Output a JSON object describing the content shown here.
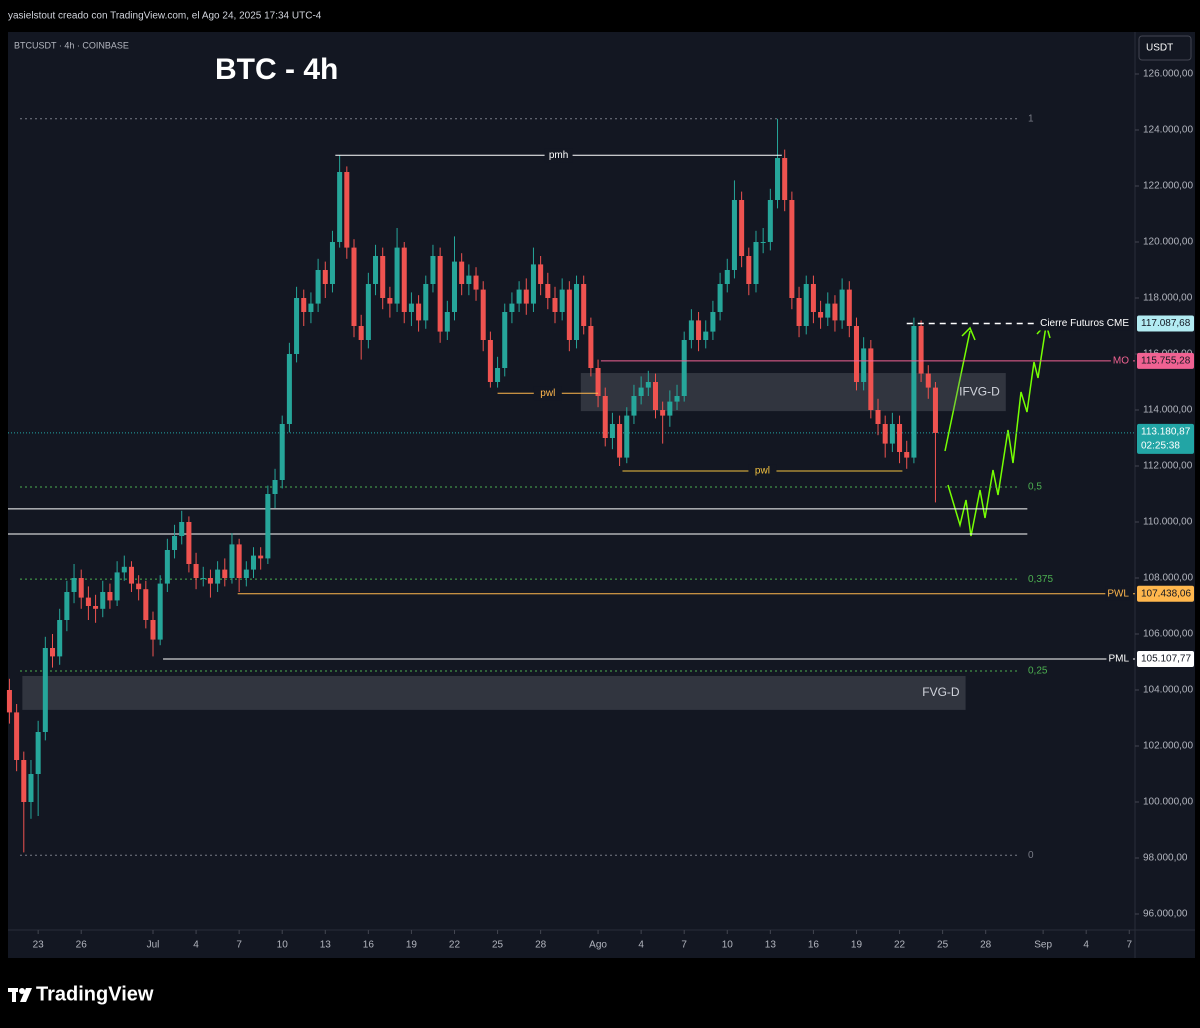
{
  "header": {
    "caption": "yasielstout creado con TradingView.com, el Ago 24, 2025 17:34 UTC-4"
  },
  "chart_data": {
    "type": "candlestick",
    "symbol": "BTCUSDT · 4h · COINBASE",
    "title": "BTC - 4h",
    "currency": "USDT",
    "up_color": "#26a69a",
    "down_color": "#ef5350",
    "x": [
      -2,
      -1.5,
      -1,
      -0.5,
      0,
      0.5,
      1,
      1.5,
      2,
      2.5,
      3,
      3.5,
      4,
      4.5,
      5,
      5.5,
      6,
      6.5,
      7,
      7.5,
      8,
      8.5,
      9,
      9.5,
      10,
      10.5,
      11,
      11.5,
      12,
      12.5,
      13,
      13.5,
      14,
      14.5,
      15,
      15.5,
      16,
      16.5,
      17,
      17.5,
      18,
      18.5,
      19,
      19.5,
      20,
      20.5,
      21,
      21.5,
      22,
      22.5,
      23,
      23.5,
      24,
      24.5,
      25,
      25.5,
      26,
      26.5,
      27,
      27.5,
      28,
      28.5,
      29,
      29.5,
      30,
      30.5,
      31,
      31.5,
      32,
      32.5,
      33,
      33.5,
      34,
      34.5,
      35,
      35.5,
      36,
      36.5,
      37,
      37.5,
      38,
      38.5,
      39,
      39.5,
      40,
      40.5,
      41,
      41.5,
      42,
      42.5,
      43,
      43.5,
      44,
      44.5,
      45,
      45.5,
      46,
      46.5,
      47,
      47.5,
      48,
      48.5,
      49,
      49.5,
      50,
      50.5,
      51,
      51.5,
      52,
      52.5,
      53,
      53.5,
      54,
      54.5,
      55,
      55.5,
      56,
      56.5,
      57,
      57.5,
      58,
      58.5,
      59,
      59.5,
      60,
      60.5,
      61,
      61.5,
      62,
      62.5
    ],
    "candles": [
      [
        104000,
        104400,
        102800,
        103200
      ],
      [
        103200,
        103500,
        101100,
        101500
      ],
      [
        101500,
        101800,
        98200,
        100000
      ],
      [
        100000,
        101500,
        99400,
        101000
      ],
      [
        101000,
        102900,
        99500,
        102500
      ],
      [
        102500,
        105900,
        102200,
        105500
      ],
      [
        105500,
        106000,
        104800,
        105200
      ],
      [
        105200,
        106900,
        104900,
        106500
      ],
      [
        106500,
        107900,
        106100,
        107500
      ],
      [
        107500,
        108500,
        107100,
        108000
      ],
      [
        108000,
        108300,
        106900,
        107300
      ],
      [
        107300,
        107700,
        106500,
        107000
      ],
      [
        107000,
        107400,
        106400,
        106900
      ],
      [
        106900,
        107900,
        106600,
        107500
      ],
      [
        107500,
        107800,
        106900,
        107200
      ],
      [
        107200,
        108600,
        107000,
        108200
      ],
      [
        108200,
        108800,
        107900,
        108400
      ],
      [
        108400,
        108600,
        107500,
        107800
      ],
      [
        107800,
        108100,
        107200,
        107600
      ],
      [
        107600,
        107900,
        106200,
        106500
      ],
      [
        106500,
        106800,
        105200,
        105800
      ],
      [
        105800,
        108100,
        105600,
        107800
      ],
      [
        107800,
        109400,
        107500,
        109000
      ],
      [
        109000,
        109900,
        108700,
        109500
      ],
      [
        109500,
        110400,
        109200,
        110000
      ],
      [
        110000,
        110200,
        108200,
        108500
      ],
      [
        108500,
        108900,
        107600,
        108000
      ],
      [
        108000,
        108400,
        107700,
        108000
      ],
      [
        108000,
        108300,
        107300,
        107800
      ],
      [
        107800,
        108600,
        107500,
        108300
      ],
      [
        108300,
        108700,
        107700,
        108000
      ],
      [
        108000,
        109600,
        107800,
        109200
      ],
      [
        109200,
        109400,
        107500,
        108000
      ],
      [
        108000,
        108600,
        107700,
        108300
      ],
      [
        108300,
        109100,
        108000,
        108800
      ],
      [
        108800,
        109100,
        108300,
        108700
      ],
      [
        108700,
        111300,
        108500,
        111000
      ],
      [
        111000,
        111900,
        110500,
        111500
      ],
      [
        111500,
        113800,
        111200,
        113500
      ],
      [
        113500,
        116400,
        113200,
        116000
      ],
      [
        116000,
        118400,
        115700,
        118000
      ],
      [
        118000,
        118300,
        117000,
        117500
      ],
      [
        117500,
        118200,
        117100,
        117800
      ],
      [
        117800,
        119400,
        117500,
        119000
      ],
      [
        119000,
        119300,
        118000,
        118500
      ],
      [
        118500,
        120400,
        118200,
        120000
      ],
      [
        120000,
        123100,
        119800,
        122500
      ],
      [
        122500,
        122700,
        119400,
        119800
      ],
      [
        119800,
        120100,
        116600,
        117000
      ],
      [
        117000,
        117400,
        115800,
        116500
      ],
      [
        116500,
        118900,
        116200,
        118500
      ],
      [
        118500,
        119900,
        118100,
        119500
      ],
      [
        119500,
        119800,
        117600,
        118000
      ],
      [
        118000,
        118400,
        117300,
        117800
      ],
      [
        117800,
        120500,
        117500,
        119800
      ],
      [
        119800,
        120000,
        117100,
        117500
      ],
      [
        117500,
        118200,
        117000,
        117800
      ],
      [
        117800,
        118100,
        116800,
        117200
      ],
      [
        117200,
        118800,
        116900,
        118500
      ],
      [
        118500,
        119900,
        118200,
        119500
      ],
      [
        119500,
        119800,
        116400,
        116800
      ],
      [
        116800,
        117900,
        116500,
        117500
      ],
      [
        117500,
        120200,
        117200,
        119300
      ],
      [
        119300,
        119600,
        118100,
        118500
      ],
      [
        118500,
        119200,
        118100,
        118800
      ],
      [
        118800,
        119100,
        117900,
        118300
      ],
      [
        118300,
        118600,
        116100,
        116500
      ],
      [
        116500,
        116800,
        114800,
        115000
      ],
      [
        115000,
        115900,
        114800,
        115500
      ],
      [
        115500,
        117800,
        115200,
        117500
      ],
      [
        117500,
        118200,
        117100,
        117800
      ],
      [
        117800,
        118600,
        117500,
        118300
      ],
      [
        118300,
        118700,
        117400,
        117800
      ],
      [
        117800,
        119800,
        117500,
        119200
      ],
      [
        119200,
        119500,
        118100,
        118500
      ],
      [
        118500,
        118900,
        117600,
        118000
      ],
      [
        118000,
        118400,
        117100,
        117500
      ],
      [
        117500,
        118700,
        117200,
        118300
      ],
      [
        118300,
        118600,
        116100,
        116500
      ],
      [
        116500,
        118800,
        116200,
        118500
      ],
      [
        118500,
        118800,
        116700,
        117000
      ],
      [
        117000,
        117300,
        115200,
        115500
      ],
      [
        115500,
        115800,
        114100,
        114500
      ],
      [
        114500,
        114800,
        112700,
        113000
      ],
      [
        113000,
        113900,
        112600,
        113500
      ],
      [
        113500,
        113800,
        112000,
        112300
      ],
      [
        112300,
        114100,
        112100,
        113800
      ],
      [
        113800,
        114900,
        113500,
        114500
      ],
      [
        114500,
        115200,
        114200,
        114800
      ],
      [
        114800,
        115400,
        114500,
        115000
      ],
      [
        115000,
        115300,
        113700,
        114000
      ],
      [
        114000,
        114300,
        112800,
        113800
      ],
      [
        113800,
        114700,
        113400,
        114300
      ],
      [
        114300,
        114900,
        114000,
        114500
      ],
      [
        114500,
        116800,
        114300,
        116500
      ],
      [
        116500,
        117600,
        116200,
        117200
      ],
      [
        117200,
        117500,
        116100,
        116500
      ],
      [
        116500,
        117200,
        116200,
        116800
      ],
      [
        116800,
        117900,
        116500,
        117500
      ],
      [
        117500,
        118900,
        117200,
        118500
      ],
      [
        118500,
        119400,
        118200,
        119000
      ],
      [
        119000,
        122200,
        118700,
        121500
      ],
      [
        121500,
        121800,
        119100,
        119500
      ],
      [
        119500,
        119800,
        118100,
        118500
      ],
      [
        118500,
        120400,
        118200,
        120000
      ],
      [
        120000,
        120500,
        119600,
        120000
      ],
      [
        120000,
        121900,
        119700,
        121500
      ],
      [
        121500,
        124400,
        121200,
        123000
      ],
      [
        123000,
        123300,
        121100,
        121500
      ],
      [
        121500,
        121800,
        117600,
        118000
      ],
      [
        118000,
        118400,
        116600,
        117000
      ],
      [
        117000,
        118800,
        116700,
        118500
      ],
      [
        118500,
        118800,
        117100,
        117500
      ],
      [
        117500,
        117900,
        116900,
        117300
      ],
      [
        117300,
        118200,
        117000,
        117800
      ],
      [
        117800,
        118100,
        116800,
        117200
      ],
      [
        117200,
        118700,
        116900,
        118300
      ],
      [
        118300,
        118600,
        116600,
        117000
      ],
      [
        117000,
        117300,
        114700,
        115000
      ],
      [
        115000,
        116600,
        114700,
        116200
      ],
      [
        116200,
        116500,
        113700,
        114000
      ],
      [
        114000,
        114400,
        113100,
        113500
      ],
      [
        113500,
        113800,
        112300,
        112800
      ],
      [
        112800,
        113900,
        112500,
        113500
      ],
      [
        113500,
        113800,
        112100,
        112500
      ],
      [
        112500,
        112900,
        111900,
        112300
      ],
      [
        112300,
        117300,
        112100,
        117000
      ],
      [
        117000,
        117200,
        115000,
        115300
      ],
      [
        115300,
        115600,
        114400,
        114800
      ],
      [
        114800,
        115000,
        110700,
        113180.87
      ]
    ],
    "xlim": [
      -2.1,
      76.4
    ],
    "xticks": [
      {
        "value": 0,
        "label": "23"
      },
      {
        "value": 3,
        "label": "26"
      },
      {
        "value": 8,
        "label": "Jul"
      },
      {
        "value": 11,
        "label": "4"
      },
      {
        "value": 14,
        "label": "7"
      },
      {
        "value": 17,
        "label": "10"
      },
      {
        "value": 20,
        "label": "13"
      },
      {
        "value": 23,
        "label": "16"
      },
      {
        "value": 26,
        "label": "19"
      },
      {
        "value": 29,
        "label": "22"
      },
      {
        "value": 32,
        "label": "25"
      },
      {
        "value": 35,
        "label": "28"
      },
      {
        "value": 39,
        "label": "Ago"
      },
      {
        "value": 42,
        "label": "4"
      },
      {
        "value": 45,
        "label": "7"
      },
      {
        "value": 48,
        "label": "10"
      },
      {
        "value": 51,
        "label": "13"
      },
      {
        "value": 54,
        "label": "16"
      },
      {
        "value": 57,
        "label": "19"
      },
      {
        "value": 60,
        "label": "22"
      },
      {
        "value": 63,
        "label": "25"
      },
      {
        "value": 66,
        "label": "28"
      },
      {
        "value": 70,
        "label": "Sep"
      },
      {
        "value": 73,
        "label": "4"
      },
      {
        "value": 76,
        "label": "7"
      }
    ],
    "ylim": [
      95500,
      127500
    ],
    "yticks": [
      {
        "value": 96000,
        "label": "96.000,00"
      },
      {
        "value": 98000,
        "label": "98.000,00"
      },
      {
        "value": 100000,
        "label": "100.000,00"
      },
      {
        "value": 102000,
        "label": "102.000,00"
      },
      {
        "value": 104000,
        "label": "104.000,00"
      },
      {
        "value": 106000,
        "label": "106.000,00"
      },
      {
        "value": 108000,
        "label": "108.000,00"
      },
      {
        "value": 110000,
        "label": "110.000,00"
      },
      {
        "value": 112000,
        "label": "112.000,00"
      },
      {
        "value": 114000,
        "label": "114.000,00"
      },
      {
        "value": 116000,
        "label": "116.000,00"
      },
      {
        "value": 118000,
        "label": "118.000,00"
      },
      {
        "value": 120000,
        "label": "120.000,00"
      },
      {
        "value": 122000,
        "label": "122.000,00"
      },
      {
        "value": 124000,
        "label": "124.000,00"
      },
      {
        "value": 126000,
        "label": "126.000,00"
      }
    ],
    "fib_levels": [
      {
        "value": 124400,
        "label": "1",
        "color": "#787b86"
      },
      {
        "value": 111250,
        "label": "0,5",
        "color": "#4caf50"
      },
      {
        "value": 107960,
        "label": "0,375",
        "color": "#4caf50"
      },
      {
        "value": 104680,
        "label": "0,25",
        "color": "#4caf50"
      },
      {
        "value": 98100,
        "label": "0",
        "color": "#787b86"
      }
    ],
    "price_lines": [
      {
        "name": "Cierre Futuros CME",
        "value": 117087.68,
        "label": "117.087,68",
        "color": "#ffffff",
        "box": "#b2ebf2",
        "dashed": true,
        "x": [
          60.5,
          69.8
        ]
      },
      {
        "name": "MO",
        "value": 115755.28,
        "label": "115.755,28",
        "color": "#f06292",
        "box": "#f06292",
        "dashed": false,
        "x": [
          39.2,
          76.4
        ]
      },
      {
        "name": "PWL",
        "value": 107438.06,
        "label": "107.438,06",
        "color": "#ffb74d",
        "box": "#ffb74d",
        "dashed": false,
        "x": [
          13.9,
          76.4
        ]
      },
      {
        "name": "PML",
        "value": 105107.77,
        "label": "105.107,77",
        "color": "#ffffff",
        "box": "#ffffff",
        "dashed": false,
        "x": [
          8.7,
          76.4
        ]
      }
    ],
    "last_price": {
      "value": 113180.87,
      "label": "113.180,87",
      "countdown": "02:25:38",
      "color": "#22a5a5"
    },
    "hlines": [
      {
        "value": 110470,
        "x": [
          -2.1,
          68.9
        ]
      },
      {
        "value": 109570,
        "x": [
          -2.1,
          68.9
        ]
      }
    ],
    "segments": [
      {
        "name": "pmh",
        "value": 123100,
        "x": [
          20.7,
          51.8
        ],
        "color": "#ffffff"
      },
      {
        "name": "pwl",
        "value": 114600,
        "x": [
          32,
          39
        ],
        "color": "#ffb74d"
      },
      {
        "name": "pwl",
        "value": 111820,
        "x": [
          40.7,
          60.2
        ],
        "color": "#f0c040"
      }
    ],
    "zones": [
      {
        "name": "IFVG-D",
        "values": [
          113960,
          115320
        ],
        "x": [
          37.8,
          67.4
        ]
      },
      {
        "name": "FVG-D",
        "values": [
          103290,
          104500
        ],
        "x": [
          -1.1,
          64.6
        ]
      }
    ]
  },
  "footer": {
    "brand": "TradingView"
  }
}
